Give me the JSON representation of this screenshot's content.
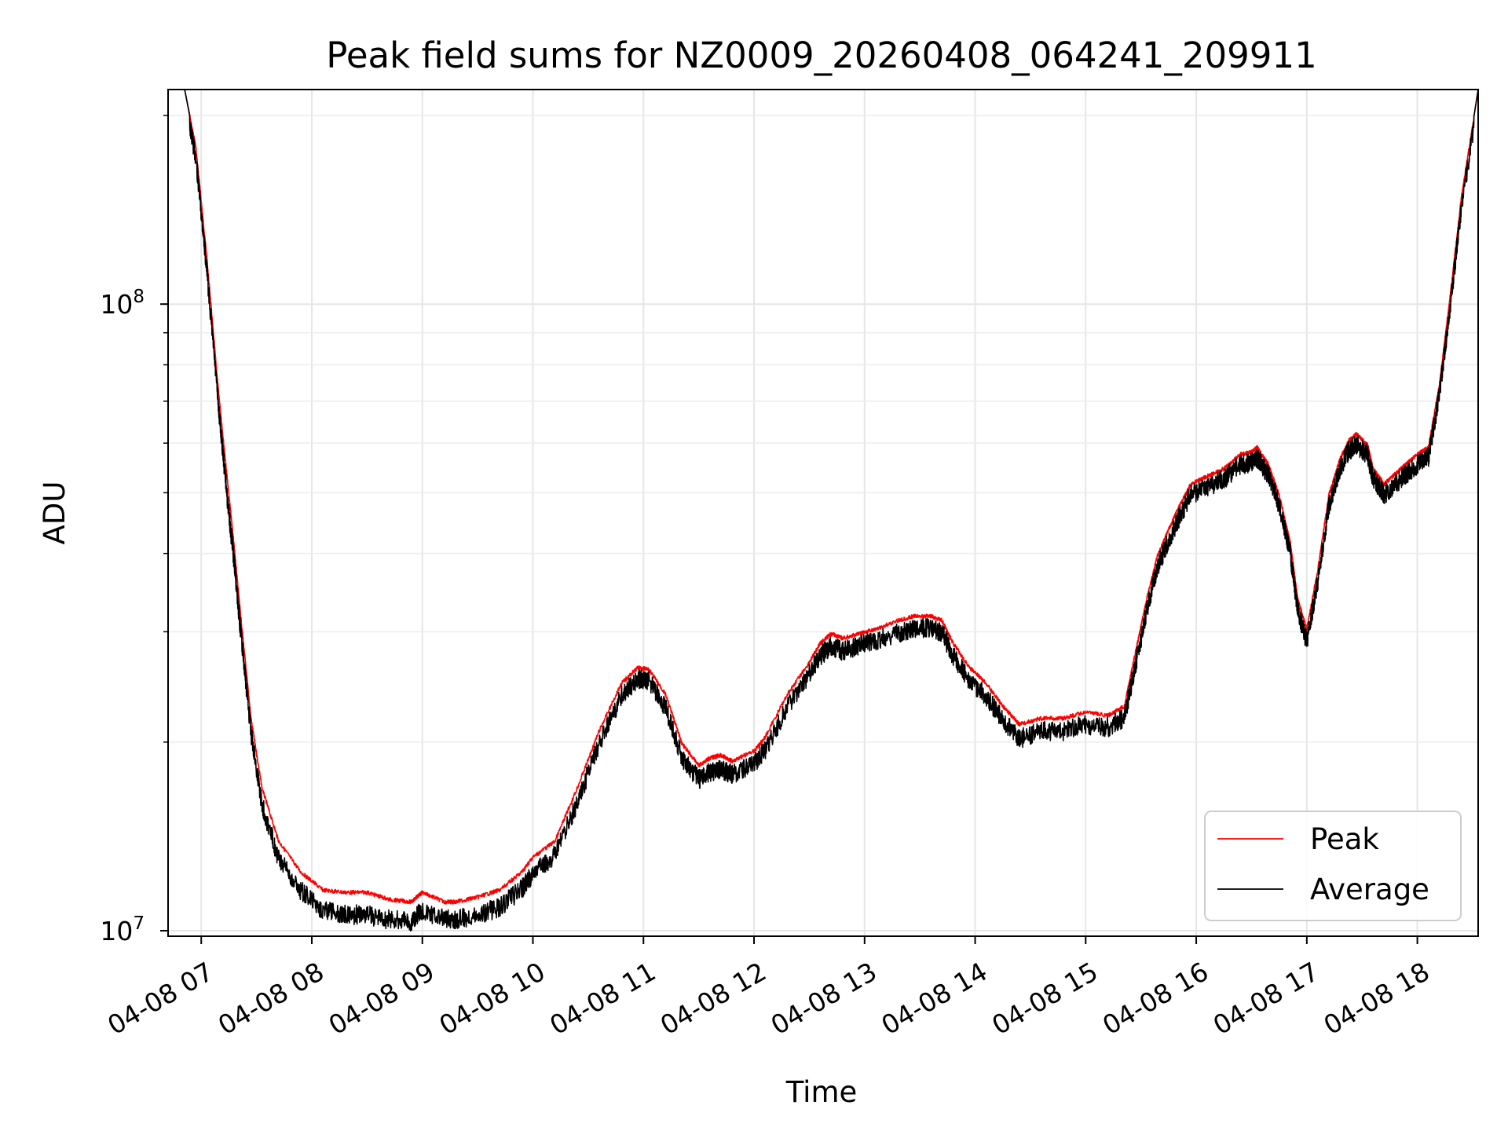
{
  "chart_data": {
    "type": "line",
    "title": "Peak field sums for NZ0009_20260408_064241_209911",
    "xlabel": "Time",
    "ylabel": "ADU",
    "yscale": "log",
    "ylim": [
      9800000,
      220000000
    ],
    "xlim": [
      6.7,
      18.55
    ],
    "grid": true,
    "legend_position": "lower-right",
    "y_ticks": [
      {
        "value": 10000000,
        "base": "10",
        "exp": "7"
      },
      {
        "value": 100000000,
        "base": "10",
        "exp": "8"
      }
    ],
    "x_ticks": [
      {
        "hour": 7,
        "label": "04-08 07"
      },
      {
        "hour": 8,
        "label": "04-08 08"
      },
      {
        "hour": 9,
        "label": "04-08 09"
      },
      {
        "hour": 10,
        "label": "04-08 10"
      },
      {
        "hour": 11,
        "label": "04-08 11"
      },
      {
        "hour": 12,
        "label": "04-08 12"
      },
      {
        "hour": 13,
        "label": "04-08 13"
      },
      {
        "hour": 14,
        "label": "04-08 14"
      },
      {
        "hour": 15,
        "label": "04-08 15"
      },
      {
        "hour": 16,
        "label": "04-08 16"
      },
      {
        "hour": 17,
        "label": "04-08 17"
      },
      {
        "hour": 18,
        "label": "04-08 18"
      }
    ],
    "series": [
      {
        "name": "Peak",
        "color": "#ff0000",
        "x": [
          6.7,
          6.85,
          6.95,
          7.05,
          7.15,
          7.25,
          7.3,
          7.35,
          7.45,
          7.55,
          7.7,
          7.9,
          8.1,
          8.3,
          8.5,
          8.7,
          8.9,
          9.0,
          9.2,
          9.3,
          9.5,
          9.7,
          9.9,
          10.0,
          10.2,
          10.4,
          10.6,
          10.8,
          10.95,
          11.05,
          11.2,
          11.35,
          11.5,
          11.6,
          11.7,
          11.8,
          12.0,
          12.1,
          12.3,
          12.5,
          12.6,
          12.7,
          12.8,
          12.95,
          13.1,
          13.3,
          13.45,
          13.6,
          13.7,
          13.8,
          13.95,
          14.1,
          14.25,
          14.4,
          14.6,
          14.8,
          15.0,
          15.2,
          15.35,
          15.45,
          15.55,
          15.65,
          15.75,
          15.85,
          15.95,
          16.1,
          16.25,
          16.4,
          16.5,
          16.55,
          16.65,
          16.75,
          16.85,
          16.92,
          17.0,
          17.1,
          17.2,
          17.3,
          17.38,
          17.45,
          17.55,
          17.6,
          17.7,
          17.8,
          17.9,
          18.0,
          18.1,
          18.2,
          18.3,
          18.4,
          18.55
        ],
        "y": [
          220000000,
          220000000,
          180000000,
          120000000,
          75000000,
          50000000,
          41000000,
          33000000,
          22000000,
          17000000,
          14000000,
          12500000,
          11700000,
          11600000,
          11600000,
          11300000,
          11200000,
          11600000,
          11200000,
          11200000,
          11400000,
          11700000,
          12500000,
          13200000,
          14000000,
          17000000,
          21000000,
          25000000,
          26500000,
          26300000,
          24000000,
          20000000,
          18500000,
          19000000,
          19200000,
          18800000,
          19500000,
          20500000,
          24000000,
          27000000,
          29000000,
          30000000,
          29500000,
          30000000,
          30500000,
          31500000,
          32000000,
          32000000,
          31500000,
          29000000,
          26500000,
          25000000,
          23000000,
          21500000,
          22000000,
          22000000,
          22500000,
          22200000,
          23000000,
          28000000,
          34000000,
          40000000,
          44000000,
          48000000,
          52000000,
          53500000,
          55000000,
          58000000,
          58500000,
          59500000,
          56000000,
          50000000,
          42000000,
          34000000,
          30500000,
          38000000,
          50000000,
          57000000,
          61000000,
          62500000,
          60000000,
          55000000,
          52000000,
          54000000,
          56000000,
          58000000,
          59500000,
          75000000,
          105000000,
          150000000,
          220000000
        ]
      },
      {
        "name": "Average",
        "color": "#000000",
        "x": [
          6.7,
          6.85,
          6.95,
          7.05,
          7.15,
          7.25,
          7.3,
          7.35,
          7.45,
          7.55,
          7.7,
          7.9,
          8.1,
          8.3,
          8.5,
          8.7,
          8.9,
          9.0,
          9.2,
          9.3,
          9.5,
          9.7,
          9.9,
          10.0,
          10.2,
          10.4,
          10.6,
          10.8,
          10.95,
          11.05,
          11.2,
          11.35,
          11.5,
          11.6,
          11.7,
          11.8,
          12.0,
          12.1,
          12.3,
          12.5,
          12.6,
          12.7,
          12.8,
          12.95,
          13.1,
          13.3,
          13.45,
          13.6,
          13.7,
          13.8,
          13.95,
          14.1,
          14.25,
          14.4,
          14.6,
          14.8,
          15.0,
          15.2,
          15.35,
          15.45,
          15.55,
          15.65,
          15.75,
          15.85,
          15.95,
          16.1,
          16.25,
          16.4,
          16.5,
          16.55,
          16.65,
          16.75,
          16.85,
          16.92,
          17.0,
          17.1,
          17.2,
          17.3,
          17.38,
          17.45,
          17.55,
          17.6,
          17.7,
          17.8,
          17.9,
          18.0,
          18.1,
          18.2,
          18.3,
          18.4,
          18.55
        ],
        "y": [
          220000000,
          220000000,
          178000000,
          118000000,
          73000000,
          48000000,
          40000000,
          32000000,
          21500000,
          16500000,
          13500000,
          12000000,
          11200000,
          11000000,
          11000000,
          10800000,
          10700000,
          11200000,
          10800000,
          10800000,
          11000000,
          11300000,
          12100000,
          12800000,
          13700000,
          16600000,
          20600000,
          24600000,
          26200000,
          26000000,
          23500000,
          19500000,
          18100000,
          18600000,
          18800000,
          18400000,
          19200000,
          20100000,
          23600000,
          26600000,
          28500000,
          29500000,
          29000000,
          29600000,
          30100000,
          31000000,
          31500000,
          31600000,
          31000000,
          28500000,
          26000000,
          24500000,
          22500000,
          21000000,
          21600000,
          21600000,
          22100000,
          21900000,
          22700000,
          27500000,
          33500000,
          39500000,
          43500000,
          47500000,
          51500000,
          53000000,
          54500000,
          57500000,
          58000000,
          59000000,
          55500000,
          49500000,
          41500000,
          33500000,
          30000000,
          37500000,
          49500000,
          56500000,
          60500000,
          62000000,
          59500000,
          54500000,
          51500000,
          53500000,
          55500000,
          57500000,
          59000000,
          74500000,
          104000000,
          149000000,
          220000000
        ]
      }
    ]
  }
}
